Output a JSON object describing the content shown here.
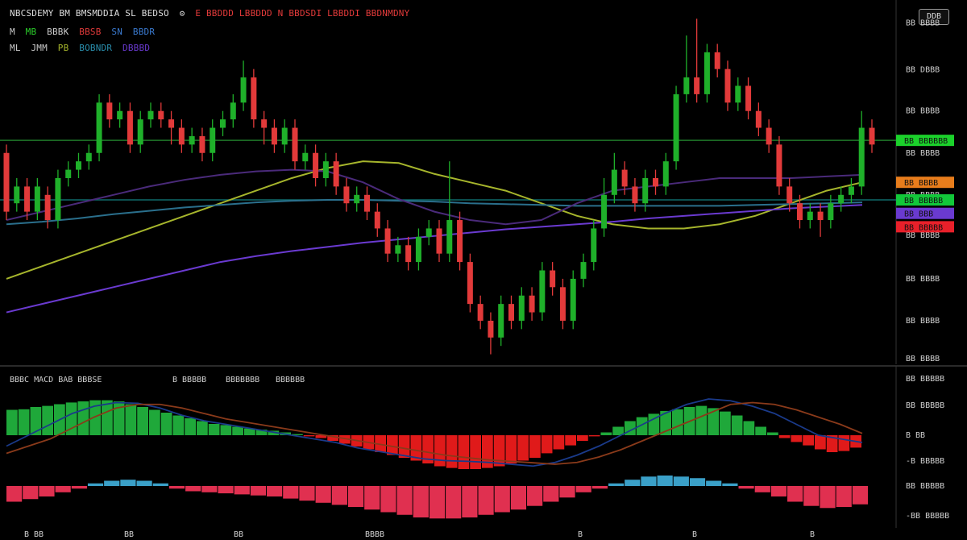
{
  "header": {
    "title": "NBCSDEMY BM BMSMDDIA SL BEDSO",
    "icon": "settings-gear",
    "ohlc": "E BBDDD LBBDDD N BBDSDI LBBDDI BBDNMDNY",
    "row2": [
      "M",
      "MB",
      "BBBK",
      "BBSB",
      "SN",
      "BBDR"
    ],
    "row3": [
      "ML",
      "JMM",
      "PB",
      "BOBNDR",
      "DBBBD"
    ],
    "symbol_button": "DDB"
  },
  "chart_data": [
    {
      "type": "candlestick",
      "price_ticks": [
        {
          "value": 14.45,
          "label": "BB BBBB"
        },
        {
          "value": 13.89,
          "label": "BB DBBB"
        },
        {
          "value": 13.4,
          "label": "BB BBBB"
        },
        {
          "value": 12.9,
          "label": "BB BBBB"
        },
        {
          "value": 12.4,
          "label": "BB BBBB"
        },
        {
          "value": 11.92,
          "label": "BB BBBB"
        },
        {
          "value": 11.4,
          "label": "BB BBBB"
        },
        {
          "value": 10.9,
          "label": "BB BBBB"
        },
        {
          "value": 10.45,
          "label": "BB BBBB"
        }
      ],
      "ylim": [
        10.4,
        14.55
      ],
      "hline": {
        "value": 13.05,
        "color": "#1f7a2a"
      },
      "hline2": {
        "value": 12.34,
        "color": "#0f6a6a"
      },
      "candles": [
        [
          0,
          12.9,
          12.2,
          13.0,
          12.1
        ],
        [
          1,
          12.3,
          12.5,
          12.6,
          12.2
        ],
        [
          2,
          12.5,
          12.2,
          12.6,
          12.1
        ],
        [
          3,
          12.2,
          12.5,
          12.6,
          12.1
        ],
        [
          4,
          12.4,
          12.1,
          12.5,
          12.0
        ],
        [
          5,
          12.1,
          12.6,
          12.7,
          12.0
        ],
        [
          6,
          12.6,
          12.7,
          12.8,
          12.5
        ],
        [
          7,
          12.7,
          12.8,
          12.9,
          12.6
        ],
        [
          8,
          12.8,
          12.9,
          13.0,
          12.7
        ],
        [
          9,
          12.9,
          13.5,
          13.6,
          12.8
        ],
        [
          10,
          13.5,
          13.3,
          13.6,
          13.2
        ],
        [
          11,
          13.3,
          13.4,
          13.5,
          13.2
        ],
        [
          12,
          13.4,
          13.0,
          13.5,
          12.9
        ],
        [
          13,
          13.0,
          13.3,
          13.4,
          12.9
        ],
        [
          14,
          13.3,
          13.4,
          13.5,
          13.2
        ],
        [
          15,
          13.4,
          13.3,
          13.5,
          13.2
        ],
        [
          16,
          13.3,
          13.2,
          13.4,
          13.0
        ],
        [
          17,
          13.2,
          13.0,
          13.3,
          12.9
        ],
        [
          18,
          13.0,
          13.1,
          13.2,
          12.9
        ],
        [
          19,
          13.1,
          12.9,
          13.2,
          12.8
        ],
        [
          20,
          12.9,
          13.2,
          13.3,
          12.8
        ],
        [
          21,
          13.2,
          13.3,
          13.4,
          13.1
        ],
        [
          22,
          13.3,
          13.5,
          13.6,
          13.2
        ],
        [
          23,
          13.5,
          13.8,
          14.0,
          13.4
        ],
        [
          24,
          13.8,
          13.3,
          13.9,
          13.2
        ],
        [
          25,
          13.3,
          13.2,
          13.4,
          13.0
        ],
        [
          26,
          13.2,
          13.0,
          13.3,
          12.9
        ],
        [
          27,
          13.0,
          13.2,
          13.3,
          12.9
        ],
        [
          28,
          13.2,
          12.8,
          13.3,
          12.7
        ],
        [
          29,
          12.8,
          12.9,
          13.0,
          12.7
        ],
        [
          30,
          12.9,
          12.6,
          13.0,
          12.5
        ],
        [
          31,
          12.6,
          12.8,
          12.9,
          12.5
        ],
        [
          32,
          12.8,
          12.5,
          12.9,
          12.4
        ],
        [
          33,
          12.5,
          12.3,
          12.6,
          12.2
        ],
        [
          34,
          12.3,
          12.4,
          12.5,
          12.2
        ],
        [
          35,
          12.4,
          12.2,
          12.5,
          12.1
        ],
        [
          36,
          12.2,
          12.0,
          12.3,
          11.9
        ],
        [
          37,
          12.0,
          11.7,
          12.1,
          11.6
        ],
        [
          38,
          11.7,
          11.8,
          11.9,
          11.6
        ],
        [
          39,
          11.8,
          11.6,
          11.9,
          11.5
        ],
        [
          40,
          11.6,
          11.9,
          12.0,
          11.5
        ],
        [
          41,
          11.9,
          12.0,
          12.1,
          11.8
        ],
        [
          42,
          12.0,
          11.7,
          12.1,
          11.6
        ],
        [
          43,
          11.7,
          12.1,
          12.8,
          11.6
        ],
        [
          44,
          12.1,
          11.6,
          12.2,
          11.5
        ],
        [
          45,
          11.6,
          11.1,
          11.7,
          11.0
        ],
        [
          46,
          11.1,
          10.9,
          11.2,
          10.8
        ],
        [
          47,
          10.9,
          10.7,
          11.0,
          10.5
        ],
        [
          48,
          10.7,
          11.1,
          11.2,
          10.6
        ],
        [
          49,
          11.1,
          10.9,
          11.2,
          10.8
        ],
        [
          50,
          10.9,
          11.2,
          11.3,
          10.8
        ],
        [
          51,
          11.2,
          11.0,
          11.3,
          10.9
        ],
        [
          52,
          11.0,
          11.5,
          11.6,
          10.9
        ],
        [
          53,
          11.5,
          11.3,
          11.6,
          11.2
        ],
        [
          54,
          11.3,
          10.9,
          11.4,
          10.8
        ],
        [
          55,
          10.9,
          11.4,
          11.5,
          10.8
        ],
        [
          56,
          11.4,
          11.6,
          11.7,
          11.3
        ],
        [
          57,
          11.6,
          12.0,
          12.1,
          11.5
        ],
        [
          58,
          12.0,
          12.4,
          12.6,
          11.9
        ],
        [
          59,
          12.4,
          12.7,
          12.9,
          12.3
        ],
        [
          60,
          12.7,
          12.5,
          12.8,
          12.4
        ],
        [
          61,
          12.5,
          12.3,
          12.6,
          12.2
        ],
        [
          62,
          12.3,
          12.6,
          12.7,
          12.2
        ],
        [
          63,
          12.6,
          12.5,
          12.7,
          12.4
        ],
        [
          64,
          12.5,
          12.8,
          12.9,
          12.4
        ],
        [
          65,
          12.8,
          13.6,
          13.7,
          12.7
        ],
        [
          66,
          13.6,
          13.8,
          14.3,
          13.5
        ],
        [
          67,
          13.8,
          13.6,
          14.5,
          13.5
        ],
        [
          68,
          13.6,
          14.1,
          14.2,
          13.5
        ],
        [
          69,
          14.1,
          13.9,
          14.2,
          13.8
        ],
        [
          70,
          13.9,
          13.5,
          14.0,
          13.4
        ],
        [
          71,
          13.5,
          13.7,
          13.8,
          13.4
        ],
        [
          72,
          13.7,
          13.4,
          13.8,
          13.3
        ],
        [
          73,
          13.4,
          13.2,
          13.5,
          13.1
        ],
        [
          74,
          13.2,
          13.0,
          13.3,
          12.9
        ],
        [
          75,
          13.0,
          12.5,
          13.1,
          12.4
        ],
        [
          76,
          12.5,
          12.3,
          12.6,
          12.2
        ],
        [
          77,
          12.3,
          12.1,
          12.4,
          12.0
        ],
        [
          78,
          12.1,
          12.2,
          12.3,
          12.0
        ],
        [
          79,
          12.2,
          12.1,
          12.3,
          11.9
        ],
        [
          80,
          12.1,
          12.3,
          12.4,
          12.0
        ],
        [
          81,
          12.3,
          12.4,
          12.5,
          12.2
        ],
        [
          82,
          12.4,
          12.5,
          12.6,
          12.3
        ],
        [
          83,
          12.5,
          13.2,
          13.4,
          12.4
        ],
        [
          84,
          13.2,
          13.0,
          13.3,
          12.9
        ]
      ],
      "series": [
        {
          "name": "MA1",
          "color": "#a6b52c",
          "values": [
            11.4,
            11.55,
            11.7,
            11.85,
            12.0,
            12.15,
            12.3,
            12.45,
            12.6,
            12.72,
            12.8,
            12.78,
            12.65,
            12.55,
            12.45,
            12.3,
            12.15,
            12.05,
            12.0,
            12.0,
            12.05,
            12.15,
            12.3,
            12.45,
            12.55
          ]
        },
        {
          "name": "MA2",
          "color": "#2a6f8c",
          "values": [
            12.05,
            12.08,
            12.12,
            12.17,
            12.21,
            12.25,
            12.28,
            12.31,
            12.33,
            12.34,
            12.34,
            12.33,
            12.32,
            12.3,
            12.29,
            12.28,
            12.27,
            12.27,
            12.27,
            12.27,
            12.27,
            12.28,
            12.29,
            12.3,
            12.31
          ]
        },
        {
          "name": "MA3",
          "color": "#6a3ad0",
          "values": [
            11.0,
            11.1,
            11.2,
            11.3,
            11.4,
            11.5,
            11.6,
            11.67,
            11.73,
            11.78,
            11.83,
            11.87,
            11.91,
            11.95,
            11.99,
            12.02,
            12.05,
            12.08,
            12.12,
            12.15,
            12.18,
            12.21,
            12.24,
            12.26,
            12.28
          ]
        },
        {
          "name": "MA4",
          "color": "#4a2a7a",
          "values": [
            12.1,
            12.2,
            12.3,
            12.4,
            12.5,
            12.58,
            12.64,
            12.68,
            12.7,
            12.68,
            12.55,
            12.35,
            12.2,
            12.1,
            12.05,
            12.1,
            12.3,
            12.45,
            12.5,
            12.55,
            12.6,
            12.6,
            12.6,
            12.62,
            12.64
          ]
        }
      ],
      "price_tags": [
        {
          "label": "BB BBBBBB",
          "color": "#1bd12b",
          "value": 13.05
        },
        {
          "label": "BB BBBB",
          "color": "#e87d1c",
          "value": 12.55
        },
        {
          "label": "BB BBBBB",
          "color": "#12c83a",
          "value": 12.34
        },
        {
          "label": "BB BBB",
          "color": "#6a3ad0",
          "value": 12.18
        },
        {
          "label": "BB BBBBB",
          "color": "#e8202a",
          "value": 12.02
        }
      ],
      "x_tick_labels": [
        "B BB",
        "BB",
        "BB",
        "BBBB",
        "B",
        "B",
        "B"
      ]
    },
    {
      "type": "bar",
      "legend": [
        "BBBC MACD BAB BBBSE",
        "B BBBBB",
        "BBBBBBB",
        "BBBBBB"
      ],
      "zero_label": "B BB",
      "ticks": [
        "BB BBBBB",
        "BB BBBBB",
        "B BB",
        "-B BBBBB",
        "BB BBBBB",
        "-BB BBBBB"
      ],
      "hist1": [
        0.45,
        0.46,
        0.5,
        0.52,
        0.55,
        0.58,
        0.6,
        0.62,
        0.62,
        0.6,
        0.55,
        0.5,
        0.45,
        0.4,
        0.35,
        0.3,
        0.25,
        0.2,
        0.18,
        0.15,
        0.12,
        0.1,
        0.08,
        0.05,
        0.02,
        -0.02,
        -0.05,
        -0.1,
        -0.15,
        -0.2,
        -0.25,
        -0.3,
        -0.35,
        -0.4,
        -0.45,
        -0.5,
        -0.55,
        -0.58,
        -0.6,
        -0.6,
        -0.58,
        -0.55,
        -0.5,
        -0.45,
        -0.4,
        -0.32,
        -0.25,
        -0.18,
        -0.1,
        -0.02,
        0.05,
        0.15,
        0.25,
        0.32,
        0.38,
        0.43,
        0.46,
        0.5,
        0.52,
        0.48,
        0.42,
        0.35,
        0.25,
        0.15,
        0.05,
        -0.05,
        -0.12,
        -0.18,
        -0.25,
        -0.3,
        -0.28,
        -0.22
      ],
      "hist2": [
        -0.3,
        -0.25,
        -0.2,
        -0.12,
        -0.05,
        0.05,
        0.1,
        0.12,
        0.1,
        0.05,
        -0.05,
        -0.1,
        -0.12,
        -0.14,
        -0.16,
        -0.18,
        -0.2,
        -0.24,
        -0.28,
        -0.32,
        -0.36,
        -0.4,
        -0.45,
        -0.5,
        -0.55,
        -0.6,
        -0.62,
        -0.62,
        -0.6,
        -0.55,
        -0.5,
        -0.45,
        -0.38,
        -0.3,
        -0.22,
        -0.12,
        -0.05,
        0.05,
        0.12,
        0.18,
        0.2,
        0.18,
        0.15,
        0.1,
        0.05,
        -0.05,
        -0.12,
        -0.2,
        -0.3,
        -0.38,
        -0.42,
        -0.4,
        -0.35
      ],
      "line1_color": "#1a3a8a",
      "line2_color": "#8a3a1a",
      "line1": [
        -0.3,
        0.0,
        0.3,
        0.6,
        0.8,
        0.9,
        0.88,
        0.75,
        0.55,
        0.4,
        0.3,
        0.2,
        0.1,
        0.0,
        -0.1,
        -0.2,
        -0.35,
        -0.45,
        -0.55,
        -0.65,
        -0.7,
        -0.72,
        -0.75,
        -0.8,
        -0.85,
        -0.75,
        -0.55,
        -0.3,
        0.0,
        0.3,
        0.6,
        0.85,
        1.0,
        0.95,
        0.8,
        0.6,
        0.3,
        0.0,
        -0.1,
        -0.2
      ],
      "line2": [
        -0.5,
        -0.3,
        -0.1,
        0.2,
        0.5,
        0.75,
        0.85,
        0.85,
        0.75,
        0.6,
        0.45,
        0.35,
        0.25,
        0.15,
        0.05,
        -0.05,
        -0.15,
        -0.25,
        -0.35,
        -0.45,
        -0.55,
        -0.62,
        -0.68,
        -0.72,
        -0.76,
        -0.8,
        -0.75,
        -0.6,
        -0.4,
        -0.15,
        0.1,
        0.35,
        0.6,
        0.85,
        0.9,
        0.85,
        0.7,
        0.5,
        0.3,
        0.05
      ]
    }
  ]
}
